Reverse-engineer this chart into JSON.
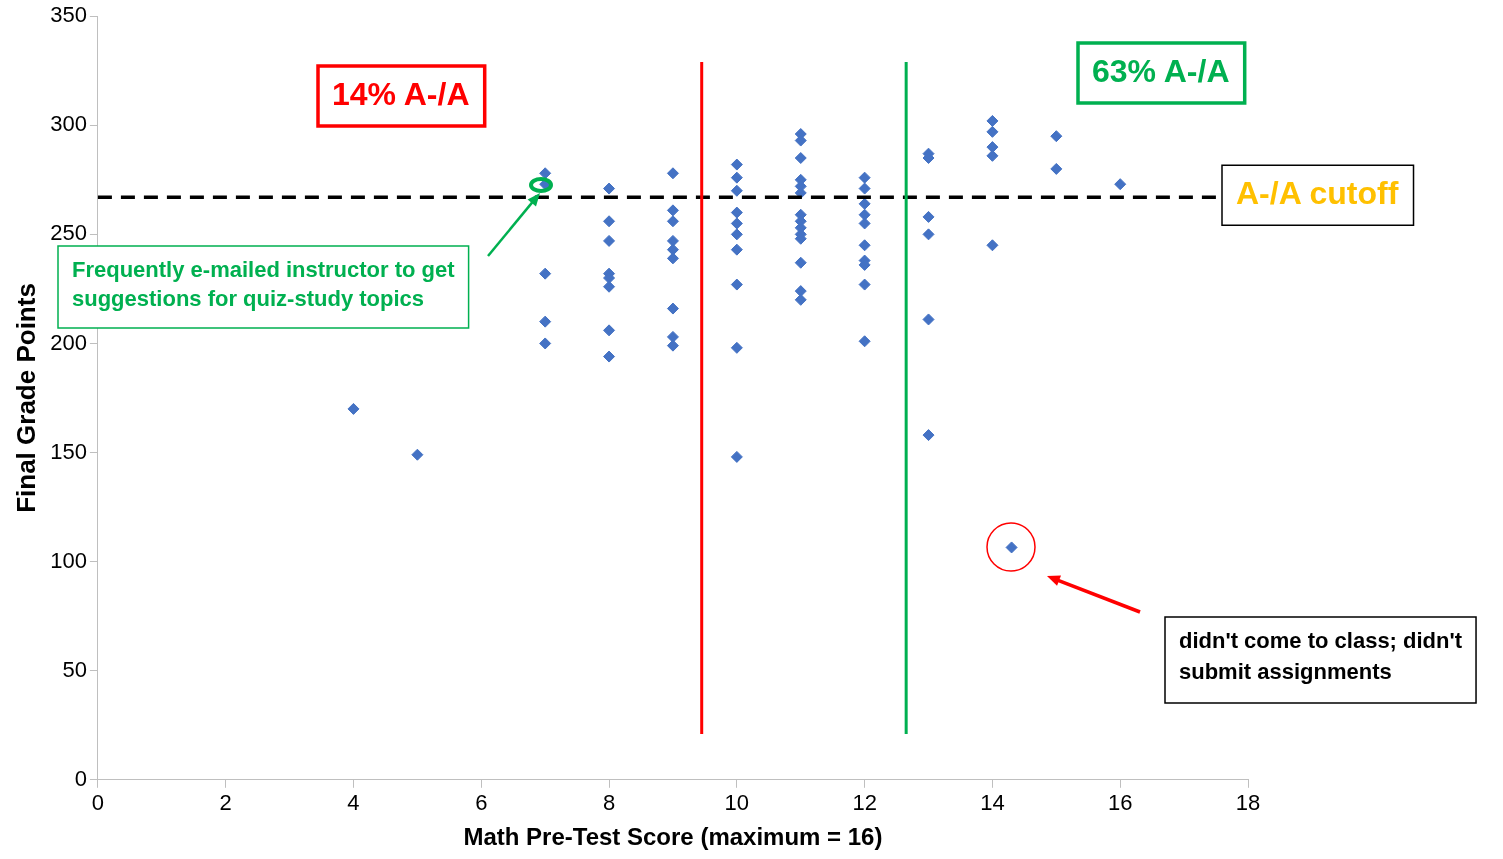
{
  "chart_data": {
    "type": "scatter",
    "xlabel": "Math Pre-Test Score (maximum = 16)",
    "ylabel": "Final Grade Points",
    "series": [
      {
        "color": "#4472c4",
        "x": [
          4,
          5,
          7,
          7,
          7,
          7,
          7,
          8,
          8,
          8,
          8,
          8,
          8,
          8,
          8,
          9,
          9,
          9,
          9,
          9,
          9,
          9,
          9,
          9,
          10,
          10,
          10,
          10,
          10,
          10,
          10,
          10,
          10,
          10,
          11,
          11,
          11,
          11,
          11,
          11,
          11,
          11,
          11,
          11,
          11,
          11,
          11,
          11,
          12,
          12,
          12,
          12,
          12,
          12,
          12,
          12,
          12,
          12,
          13,
          13,
          13,
          13,
          13,
          13,
          14,
          14,
          14,
          14,
          14,
          15,
          15,
          16,
          14.3
        ],
        "values": [
          170,
          149,
          278,
          273,
          232,
          210,
          200,
          271,
          256,
          247,
          232,
          230,
          226,
          206,
          194,
          278,
          261,
          256,
          247,
          243,
          239,
          216,
          203,
          199,
          282,
          276,
          270,
          260,
          255,
          250,
          243,
          227,
          198,
          148,
          296,
          293,
          285,
          275,
          272,
          269,
          259,
          256,
          253,
          250,
          248,
          237,
          224,
          220,
          276,
          271,
          264,
          259,
          255,
          245,
          238,
          236,
          227,
          201,
          287,
          285,
          258,
          250,
          211,
          158,
          302,
          297,
          290,
          286,
          245,
          295,
          280,
          273,
          106.5
        ]
      }
    ],
    "xlim": [
      0,
      18
    ],
    "xticks": [
      0,
      2,
      4,
      6,
      8,
      10,
      12,
      14,
      16,
      18
    ],
    "ylim": [
      0,
      350
    ],
    "yticks": [
      0,
      50,
      100,
      150,
      200,
      250,
      300,
      350
    ],
    "grid": false,
    "legend": false,
    "marker": "diamond",
    "ref_lines": [
      {
        "axis": "y",
        "value": 267,
        "label": "A-/A cutoff",
        "color": "#000000",
        "line_style": "dashed"
      },
      {
        "axis": "x",
        "value": 9.45,
        "color": "#ff0000",
        "line_style": "solid"
      },
      {
        "axis": "x",
        "value": 12.65,
        "color": "#00b050",
        "line_style": "solid"
      }
    ],
    "annotations": [
      "14% A-/A",
      "63% A-/A",
      "Frequently e-mailed instructor to get suggestions for quiz-study topics",
      "didn't come to class; didn't submit assignments"
    ]
  }
}
